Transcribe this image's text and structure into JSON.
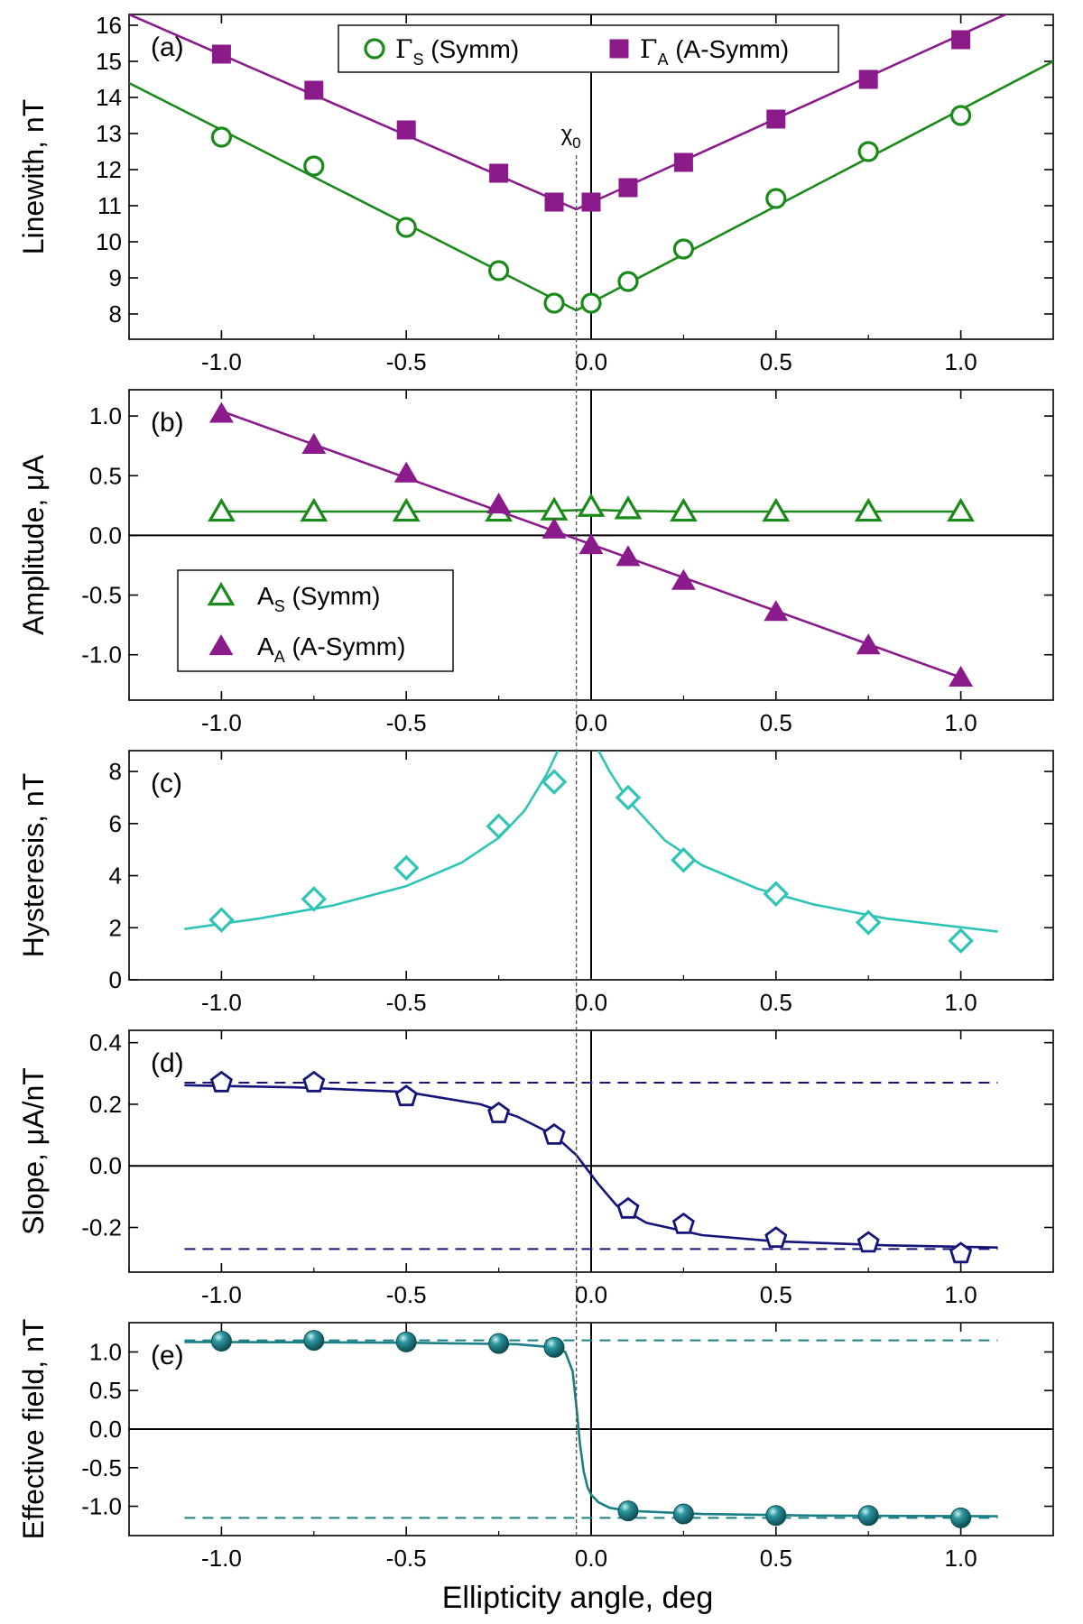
{
  "figure": {
    "xlabel": "Ellipticity angle, deg",
    "marker_label": "χ",
    "marker_sub": "0",
    "marker_x": -0.04
  },
  "chart_data": [
    {
      "type": "scatter",
      "panel": "(a)",
      "ylabel": "Linewith, nT",
      "xlim": [
        -1.25,
        1.25
      ],
      "ylim": [
        7.3,
        16.3
      ],
      "xticks": [
        -1.0,
        -0.5,
        0.0,
        0.5,
        1.0
      ],
      "xtick_labels": [
        "-1.0",
        "-0.5",
        "0.0",
        "0.5",
        "1.0"
      ],
      "yticks": [
        8,
        9,
        10,
        11,
        12,
        13,
        14,
        15,
        16
      ],
      "ytick_labels": [
        "8",
        "9",
        "10",
        "11",
        "12",
        "13",
        "14",
        "15",
        "16"
      ],
      "legend_placement": "top-center",
      "series": [
        {
          "name_main": "Γ",
          "name_sub": "S",
          "name_tail": " (Symm)",
          "marker": "circle-open",
          "color": "#1a8a1a",
          "x": [
            -1.0,
            -0.75,
            -0.5,
            -0.25,
            -0.1,
            0.0,
            0.1,
            0.25,
            0.5,
            0.75,
            1.0
          ],
          "y": [
            12.9,
            12.1,
            10.4,
            9.2,
            8.3,
            8.3,
            8.9,
            9.8,
            11.2,
            12.5,
            13.5
          ],
          "fit_x": [
            -1.25,
            -0.04,
            1.25
          ],
          "fit_y": [
            14.4,
            8.1,
            15.0
          ]
        },
        {
          "name_main": "Γ",
          "name_sub": "A",
          "name_tail": " (A-Symm)",
          "marker": "square-filled",
          "color": "#8b1a8b",
          "x": [
            -1.0,
            -0.75,
            -0.5,
            -0.25,
            -0.1,
            0.0,
            0.1,
            0.25,
            0.5,
            0.75,
            1.0
          ],
          "y": [
            15.2,
            14.2,
            13.1,
            11.9,
            11.1,
            11.1,
            11.5,
            12.2,
            13.4,
            14.5,
            15.6
          ],
          "fit_x": [
            -1.25,
            -0.04,
            1.25
          ],
          "fit_y": [
            16.3,
            10.9,
            16.9
          ]
        }
      ]
    },
    {
      "type": "scatter",
      "panel": "(b)",
      "ylabel": "Amplitude, μA",
      "xlim": [
        -1.25,
        1.25
      ],
      "ylim": [
        -1.38,
        1.22
      ],
      "xticks": [
        -1.0,
        -0.5,
        0.0,
        0.5,
        1.0
      ],
      "xtick_labels": [
        "-1.0",
        "-0.5",
        "0.0",
        "0.5",
        "1.0"
      ],
      "yticks": [
        -1.0,
        -0.5,
        0.0,
        0.5,
        1.0
      ],
      "ytick_labels": [
        "-1.0",
        "-0.5",
        "0.0",
        "0.5",
        "1.0"
      ],
      "zero_line": true,
      "legend_placement": "bottom-left",
      "series": [
        {
          "name_main": "A",
          "name_sub": "S",
          "name_tail": " (Symm)",
          "marker": "triangle-open",
          "color": "#1a8a1a",
          "x": [
            -1.0,
            -0.75,
            -0.5,
            -0.25,
            -0.1,
            0.0,
            0.1,
            0.25,
            0.5,
            0.75,
            1.0
          ],
          "y": [
            0.2,
            0.2,
            0.2,
            0.2,
            0.21,
            0.24,
            0.22,
            0.2,
            0.2,
            0.2,
            0.2
          ],
          "fit_x": [
            -1.0,
            -0.25,
            -0.1,
            0.0,
            0.1,
            0.25,
            1.0
          ],
          "fit_y": [
            0.2,
            0.2,
            0.205,
            0.215,
            0.205,
            0.2,
            0.2
          ]
        },
        {
          "name_main": "A",
          "name_sub": "A",
          "name_tail": " (A-Symm)",
          "marker": "triangle-filled",
          "color": "#8b1a8b",
          "x": [
            -1.0,
            -0.75,
            -0.5,
            -0.25,
            -0.1,
            0.0,
            0.1,
            0.25,
            0.5,
            0.75,
            1.0
          ],
          "y": [
            1.02,
            0.76,
            0.52,
            0.26,
            0.05,
            -0.08,
            -0.18,
            -0.38,
            -0.64,
            -0.92,
            -1.19
          ],
          "fit_x": [
            -1.0,
            1.0
          ],
          "fit_y": [
            1.04,
            -1.19
          ]
        }
      ]
    },
    {
      "type": "scatter",
      "panel": "(c)",
      "ylabel": "Hysteresis, nT",
      "xlim": [
        -1.25,
        1.25
      ],
      "ylim": [
        0,
        8.8
      ],
      "xticks": [
        -1.0,
        -0.5,
        0.0,
        0.5,
        1.0
      ],
      "xtick_labels": [
        "-1.0",
        "-0.5",
        "0.0",
        "0.5",
        "1.0"
      ],
      "yticks": [
        0,
        2,
        4,
        6,
        8
      ],
      "ytick_labels": [
        "0",
        "2",
        "4",
        "6",
        "8"
      ],
      "series": [
        {
          "marker": "diamond-open",
          "color": "#2ec4b6",
          "x": [
            -1.0,
            -0.75,
            -0.5,
            -0.25,
            -0.1,
            0.1,
            0.25,
            0.5,
            0.75,
            1.0
          ],
          "y": [
            2.3,
            3.1,
            4.3,
            5.9,
            7.6,
            7.0,
            4.6,
            3.3,
            2.2,
            1.5
          ],
          "fit_x": [
            -1.1,
            -0.9,
            -0.7,
            -0.5,
            -0.35,
            -0.25,
            -0.18,
            -0.12,
            -0.09,
            0.02,
            0.05,
            0.1,
            0.2,
            0.3,
            0.45,
            0.6,
            0.8,
            1.1
          ],
          "fit_y": [
            1.95,
            2.35,
            2.85,
            3.6,
            4.5,
            5.45,
            6.5,
            7.9,
            8.8,
            8.8,
            8.0,
            6.9,
            5.35,
            4.4,
            3.5,
            2.9,
            2.35,
            1.85
          ]
        }
      ]
    },
    {
      "type": "scatter",
      "panel": "(d)",
      "ylabel": "Slope, μA/nT",
      "xlim": [
        -1.25,
        1.25
      ],
      "ylim": [
        -0.345,
        0.44
      ],
      "xticks": [
        -1.0,
        -0.5,
        0.0,
        0.5,
        1.0
      ],
      "xtick_labels": [
        "-1.0",
        "-0.5",
        "0.0",
        "0.5",
        "1.0"
      ],
      "yticks": [
        -0.2,
        0.0,
        0.2,
        0.4
      ],
      "ytick_labels": [
        "-0.2",
        "0.0",
        "0.2",
        "0.4"
      ],
      "zero_line": true,
      "asymptotes": [
        0.27,
        -0.27
      ],
      "asymptote_xlim": [
        -1.1,
        1.1
      ],
      "series": [
        {
          "marker": "pentagon-open",
          "color": "#14147a",
          "x": [
            -1.0,
            -0.75,
            -0.5,
            -0.25,
            -0.1,
            0.1,
            0.25,
            0.5,
            0.75,
            1.0
          ],
          "y": [
            0.27,
            0.27,
            0.225,
            0.17,
            0.1,
            -0.14,
            -0.19,
            -0.235,
            -0.25,
            -0.285
          ],
          "fit_x": [
            -1.1,
            -0.8,
            -0.5,
            -0.3,
            -0.2,
            -0.1,
            -0.04,
            0.02,
            0.07,
            0.15,
            0.3,
            0.5,
            0.8,
            1.1
          ],
          "fit_y": [
            0.262,
            0.255,
            0.24,
            0.2,
            0.16,
            0.1,
            0.035,
            -0.06,
            -0.13,
            -0.185,
            -0.225,
            -0.245,
            -0.258,
            -0.265
          ]
        }
      ]
    },
    {
      "type": "scatter",
      "panel": "(e)",
      "ylabel": "Effective field, nT",
      "xlim": [
        -1.25,
        1.25
      ],
      "ylim": [
        -1.38,
        1.38
      ],
      "xticks": [
        -1.0,
        -0.5,
        0.0,
        0.5,
        1.0
      ],
      "xtick_labels": [
        "-1.0",
        "-0.5",
        "0.0",
        "0.5",
        "1.0"
      ],
      "yticks": [
        -1.0,
        -0.5,
        0.0,
        0.5,
        1.0
      ],
      "ytick_labels": [
        "-1.0",
        "-0.5",
        "0.0",
        "0.5",
        "1.0"
      ],
      "zero_line": true,
      "asymptotes": [
        1.15,
        -1.15
      ],
      "asymptote_xlim": [
        -1.1,
        1.1
      ],
      "series": [
        {
          "marker": "sphere-filled",
          "color": "#1b7f86",
          "x": [
            -1.0,
            -0.75,
            -0.5,
            -0.25,
            -0.1,
            0.1,
            0.25,
            0.5,
            0.75,
            1.0
          ],
          "y": [
            1.14,
            1.15,
            1.13,
            1.11,
            1.06,
            -1.06,
            -1.1,
            -1.12,
            -1.12,
            -1.15
          ],
          "fit_x": [
            -1.1,
            -0.5,
            -0.2,
            -0.1,
            -0.07,
            -0.05,
            -0.04,
            -0.03,
            -0.02,
            -0.01,
            0.0,
            0.02,
            0.05,
            0.1,
            0.3,
            0.6,
            1.1
          ],
          "fit_y": [
            1.13,
            1.12,
            1.1,
            1.06,
            1.0,
            0.75,
            0.3,
            -0.2,
            -0.55,
            -0.75,
            -0.85,
            -0.95,
            -1.02,
            -1.06,
            -1.1,
            -1.12,
            -1.13
          ]
        }
      ]
    }
  ]
}
